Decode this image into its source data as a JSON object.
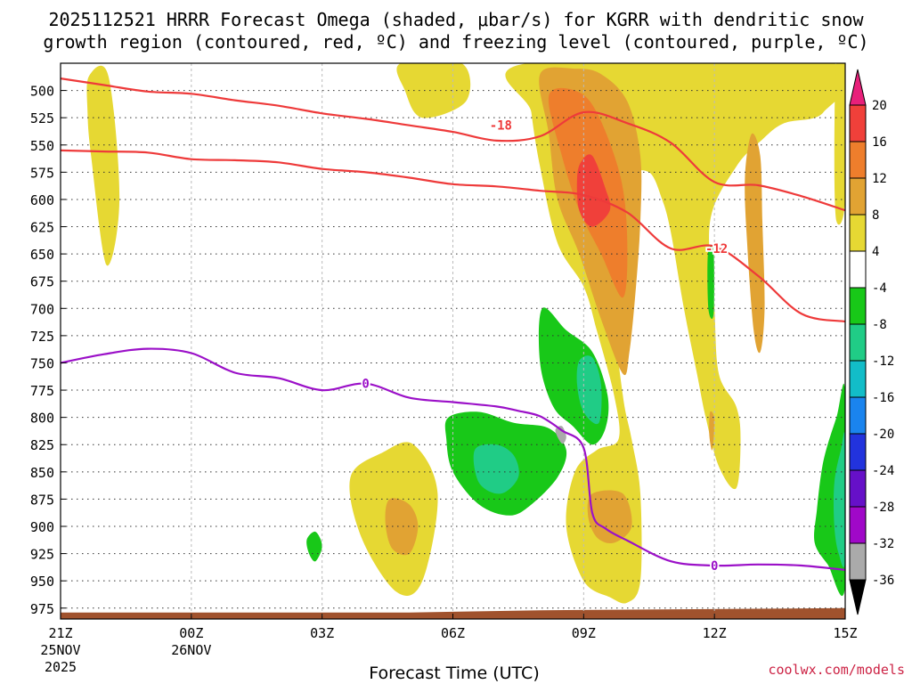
{
  "chart_data": {
    "type": "contour",
    "title_line1": "2025112521 HRRR Forecast Omega (shaded, μbar/s) for KGRR with dendritic snow",
    "title_line2": "growth region (contoured, red, ºC) and freezing level (contoured, purple, ºC)",
    "xlabel": "Forecast Time (UTC)",
    "credit": "coolwx.com/models",
    "x_range_hours": [
      0,
      18
    ],
    "y_range_hpa": [
      475,
      985
    ],
    "y_ticks": [
      500,
      525,
      550,
      575,
      600,
      625,
      650,
      675,
      700,
      725,
      750,
      775,
      800,
      825,
      850,
      875,
      900,
      925,
      950,
      975
    ],
    "x_ticks": [
      {
        "hour": 0,
        "label": "21Z",
        "sub1": "25NOV",
        "sub2": "2025"
      },
      {
        "hour": 3,
        "label": "00Z",
        "sub1": "26NOV",
        "sub2": ""
      },
      {
        "hour": 6,
        "label": "03Z",
        "sub1": "",
        "sub2": ""
      },
      {
        "hour": 9,
        "label": "06Z",
        "sub1": "",
        "sub2": ""
      },
      {
        "hour": 12,
        "label": "09Z",
        "sub1": "",
        "sub2": ""
      },
      {
        "hour": 15,
        "label": "12Z",
        "sub1": "",
        "sub2": ""
      },
      {
        "hour": 18,
        "label": "15Z",
        "sub1": "",
        "sub2": ""
      }
    ],
    "colorbar": {
      "labels": [
        "20",
        "16",
        "12",
        "8",
        "4",
        "-4",
        "-8",
        "-12",
        "-16",
        "-20",
        "-24",
        "-28",
        "-32",
        "-36"
      ],
      "bins": [
        {
          "lo": 20,
          "hi": 24,
          "color": "#e8207a"
        },
        {
          "lo": 16,
          "hi": 20,
          "color": "#f0403a"
        },
        {
          "lo": 12,
          "hi": 16,
          "color": "#ee7e2c"
        },
        {
          "lo": 8,
          "hi": 12,
          "color": "#e1a333"
        },
        {
          "lo": 4,
          "hi": 8,
          "color": "#e6d833"
        },
        {
          "lo": -4,
          "hi": 4,
          "color": "#ffffff"
        },
        {
          "lo": -8,
          "hi": -4,
          "color": "#18c818"
        },
        {
          "lo": -12,
          "hi": -8,
          "color": "#20cc86"
        },
        {
          "lo": -16,
          "hi": -12,
          "color": "#12bdc8"
        },
        {
          "lo": -20,
          "hi": -16,
          "color": "#1a84ee"
        },
        {
          "lo": -24,
          "hi": -20,
          "color": "#2233dd"
        },
        {
          "lo": -28,
          "hi": -24,
          "color": "#6610c8"
        },
        {
          "lo": -32,
          "hi": -28,
          "color": "#a008c8"
        },
        {
          "lo": -36,
          "hi": -32,
          "color": "#aaaaaa"
        },
        {
          "lo": -40,
          "hi": -36,
          "color": "#000000"
        }
      ]
    },
    "omega_regions": [
      {
        "name": "omega-ge4-west",
        "value_bin": "4-8",
        "color": "#e6d833",
        "points": [
          [
            0.65,
            487
          ],
          [
            1.1,
            487
          ],
          [
            1.35,
            600
          ],
          [
            1.05,
            660
          ],
          [
            0.7,
            560
          ],
          [
            0.62,
            520
          ]
        ]
      },
      {
        "name": "omega-ge4-upper-left",
        "value_bin": "4-8",
        "color": "#e6d833",
        "points": [
          [
            7.8,
            475
          ],
          [
            9.2,
            475
          ],
          [
            9.3,
            510
          ],
          [
            8.3,
            525
          ],
          [
            7.9,
            500
          ]
        ]
      },
      {
        "name": "omega-ge4-main",
        "value_bin": "4-8",
        "color": "#e6d833",
        "points": [
          [
            10.7,
            475
          ],
          [
            17.7,
            475
          ],
          [
            17.5,
            520
          ],
          [
            16.6,
            530
          ],
          [
            16.1,
            545
          ],
          [
            15.5,
            570
          ],
          [
            14.9,
            620
          ],
          [
            15.0,
            700
          ],
          [
            15.1,
            760
          ],
          [
            15.5,
            790
          ],
          [
            15.6,
            820
          ],
          [
            15.5,
            865
          ],
          [
            15.1,
            845
          ],
          [
            14.8,
            800
          ],
          [
            14.6,
            760
          ],
          [
            14.3,
            700
          ],
          [
            14.0,
            630
          ],
          [
            13.8,
            600
          ],
          [
            13.5,
            575
          ],
          [
            13.0,
            580
          ],
          [
            12.8,
            620
          ],
          [
            12.7,
            700
          ],
          [
            12.9,
            780
          ],
          [
            13.1,
            820
          ],
          [
            13.3,
            870
          ],
          [
            13.3,
            950
          ],
          [
            13.0,
            970
          ],
          [
            12.6,
            965
          ],
          [
            12.0,
            950
          ],
          [
            11.6,
            900
          ],
          [
            11.8,
            850
          ],
          [
            12.3,
            830
          ],
          [
            12.8,
            820
          ],
          [
            12.7,
            780
          ],
          [
            12.3,
            720
          ],
          [
            12.0,
            680
          ],
          [
            11.4,
            640
          ],
          [
            11.0,
            570
          ],
          [
            10.8,
            520
          ]
        ]
      },
      {
        "name": "omega-ge4-east-edge",
        "value_bin": "4-8",
        "color": "#e6d833",
        "points": [
          [
            17.8,
            475
          ],
          [
            18,
            475
          ],
          [
            18,
            600
          ],
          [
            17.8,
            620
          ],
          [
            17.75,
            560
          ]
        ]
      },
      {
        "name": "omega-ge4-low-left",
        "value_bin": "4-8",
        "color": "#e6d833",
        "points": [
          [
            6.65,
            855
          ],
          [
            7.4,
            832
          ],
          [
            8.1,
            825
          ],
          [
            8.65,
            870
          ],
          [
            8.3,
            950
          ],
          [
            7.7,
            960
          ],
          [
            6.9,
            910
          ]
        ]
      },
      {
        "name": "omega-ge8-main",
        "value_bin": "8-12",
        "color": "#e1a333",
        "points": [
          [
            11.0,
            485
          ],
          [
            11.8,
            480
          ],
          [
            12.4,
            485
          ],
          [
            13.0,
            510
          ],
          [
            13.3,
            560
          ],
          [
            13.3,
            620
          ],
          [
            13.2,
            680
          ],
          [
            13.05,
            740
          ],
          [
            12.9,
            760
          ],
          [
            12.4,
            710
          ],
          [
            11.9,
            650
          ],
          [
            11.4,
            600
          ],
          [
            11.2,
            540
          ]
        ]
      },
      {
        "name": "omega-ge8-east-band",
        "value_bin": "8-12",
        "color": "#e1a333",
        "points": [
          [
            15.85,
            540
          ],
          [
            16.05,
            560
          ],
          [
            16.1,
            620
          ],
          [
            16.15,
            700
          ],
          [
            16.05,
            740
          ],
          [
            15.9,
            720
          ],
          [
            15.75,
            640
          ],
          [
            15.7,
            580
          ]
        ]
      },
      {
        "name": "omega-ge8-low-left",
        "value_bin": "8-12",
        "color": "#e1a333",
        "points": [
          [
            7.55,
            875
          ],
          [
            8.0,
            880
          ],
          [
            8.2,
            900
          ],
          [
            8.0,
            925
          ],
          [
            7.6,
            920
          ],
          [
            7.45,
            895
          ]
        ]
      },
      {
        "name": "omega-ge8-low-mid",
        "value_bin": "8-12",
        "color": "#e1a333",
        "points": [
          [
            12.2,
            870
          ],
          [
            12.9,
            870
          ],
          [
            13.1,
            900
          ],
          [
            12.7,
            915
          ],
          [
            12.3,
            910
          ],
          [
            12.1,
            890
          ]
        ]
      },
      {
        "name": "omega-ge8-blip-12z",
        "value_bin": "8-12",
        "color": "#e1a333",
        "points": [
          [
            14.9,
            795
          ],
          [
            15.0,
            802
          ],
          [
            14.95,
            830
          ],
          [
            14.88,
            815
          ]
        ]
      },
      {
        "name": "omega-ge12-main",
        "value_bin": "12-16",
        "color": "#ee7e2c",
        "points": [
          [
            11.2,
            505
          ],
          [
            11.8,
            500
          ],
          [
            12.3,
            520
          ],
          [
            12.85,
            580
          ],
          [
            13.0,
            640
          ],
          [
            12.9,
            690
          ],
          [
            12.4,
            650
          ],
          [
            11.9,
            610
          ],
          [
            11.5,
            560
          ]
        ]
      },
      {
        "name": "omega-ge16-core",
        "value_bin": "16-20",
        "color": "#f0403a",
        "points": [
          [
            11.95,
            565
          ],
          [
            12.2,
            560
          ],
          [
            12.5,
            590
          ],
          [
            12.6,
            610
          ],
          [
            12.2,
            625
          ],
          [
            11.9,
            610
          ],
          [
            11.85,
            580
          ]
        ]
      },
      {
        "name": "omega-le-4-ascent-band",
        "value_bin": "-8--4",
        "color": "#18c818",
        "points": [
          [
            11.05,
            700
          ],
          [
            11.6,
            720
          ],
          [
            12.2,
            740
          ],
          [
            12.55,
            780
          ],
          [
            12.5,
            810
          ],
          [
            12.2,
            825
          ],
          [
            11.75,
            808
          ],
          [
            11.3,
            790
          ],
          [
            11.0,
            750
          ]
        ]
      },
      {
        "name": "omega-le-4-lower-mid",
        "value_bin": "-8--4",
        "color": "#18c818",
        "points": [
          [
            8.9,
            800
          ],
          [
            9.6,
            795
          ],
          [
            10.4,
            805
          ],
          [
            11.2,
            810
          ],
          [
            11.6,
            830
          ],
          [
            11.4,
            855
          ],
          [
            10.8,
            880
          ],
          [
            10.3,
            890
          ],
          [
            9.6,
            880
          ],
          [
            9.0,
            850
          ],
          [
            8.85,
            820
          ]
        ]
      },
      {
        "name": "omega-le-4-east",
        "value_bin": "-8--4",
        "color": "#18c818",
        "points": [
          [
            17.35,
            885
          ],
          [
            17.5,
            840
          ],
          [
            17.8,
            800
          ],
          [
            18,
            778
          ],
          [
            18,
            955
          ],
          [
            17.6,
            935
          ],
          [
            17.3,
            915
          ]
        ]
      },
      {
        "name": "omega-le-4-thin-12z",
        "value_bin": "-8--4",
        "color": "#18c818",
        "points": [
          [
            14.85,
            650
          ],
          [
            14.98,
            648
          ],
          [
            14.98,
            705
          ],
          [
            14.86,
            700
          ]
        ]
      },
      {
        "name": "omega-le-4-small",
        "value_bin": "-8--4",
        "color": "#18c818",
        "points": [
          [
            5.65,
            912
          ],
          [
            5.85,
            905
          ],
          [
            6.0,
            918
          ],
          [
            5.85,
            932
          ],
          [
            5.7,
            925
          ]
        ]
      },
      {
        "name": "omega-le-8-ascent-band",
        "value_bin": "-12--8",
        "color": "#20cc86",
        "points": [
          [
            11.9,
            748
          ],
          [
            12.2,
            745
          ],
          [
            12.4,
            770
          ],
          [
            12.35,
            805
          ],
          [
            12.0,
            795
          ],
          [
            11.85,
            770
          ]
        ]
      },
      {
        "name": "omega-le-8-lower-mid",
        "value_bin": "-12--8",
        "color": "#20cc86",
        "points": [
          [
            9.5,
            830
          ],
          [
            10.0,
            825
          ],
          [
            10.4,
            835
          ],
          [
            10.5,
            855
          ],
          [
            10.1,
            870
          ],
          [
            9.6,
            860
          ]
        ]
      },
      {
        "name": "omega-le-8-east",
        "value_bin": "-12--8",
        "color": "#20cc86",
        "points": [
          [
            17.75,
            860
          ],
          [
            17.9,
            830
          ],
          [
            18,
            820
          ],
          [
            18,
            930
          ],
          [
            17.85,
            925
          ],
          [
            17.75,
            900
          ]
        ]
      },
      {
        "name": "omega-le-32-speck",
        "value_bin": "-36--32",
        "color": "#aaaaaa",
        "points": [
          [
            11.35,
            812
          ],
          [
            11.5,
            808
          ],
          [
            11.6,
            818
          ],
          [
            11.5,
            824
          ]
        ]
      }
    ],
    "series": [
      {
        "name": "-18 C isotherm (upper)",
        "color": "#ee3a3a",
        "x": [
          0,
          1,
          2,
          3,
          4,
          5,
          6,
          7,
          8,
          9,
          10,
          11,
          12,
          13,
          14,
          15,
          16,
          17,
          18
        ],
        "y": [
          489,
          495,
          501,
          503,
          509,
          514,
          521,
          526,
          532,
          538,
          546,
          542,
          520,
          530,
          548,
          584,
          587,
          597,
          610
        ]
      },
      {
        "name": "-12 C isotherm (lower)",
        "color": "#ee3a3a",
        "x": [
          0,
          1,
          2,
          3,
          4,
          5,
          6,
          7,
          8,
          9,
          10,
          11,
          12,
          13,
          14,
          15,
          16,
          17,
          18
        ],
        "y": [
          555,
          556,
          557,
          563,
          564,
          566,
          572,
          575,
          580,
          586,
          588,
          592,
          596,
          612,
          645,
          643,
          670,
          705,
          712
        ]
      },
      {
        "name": "0 C freezing level",
        "color": "#9b10c8",
        "x": [
          0,
          1,
          2,
          3,
          4,
          5,
          6,
          7,
          8,
          9,
          10,
          10.5,
          11,
          11.5,
          12,
          12.2,
          12.5,
          13,
          14,
          15,
          16,
          17,
          18
        ],
        "y": [
          750,
          742,
          737,
          741,
          759,
          764,
          775,
          769,
          782,
          786,
          790,
          794,
          799,
          812,
          828,
          888,
          902,
          913,
          932,
          936,
          935,
          936,
          940
        ]
      }
    ],
    "contour_labels": [
      {
        "text": "-18",
        "x": 10.1,
        "y": 532,
        "color": "#ee3a3a"
      },
      {
        "text": "-12",
        "x": 15.05,
        "y": 645,
        "color": "#ee3a3a"
      },
      {
        "text": "0",
        "x": 7.0,
        "y": 769,
        "color": "#9b10c8"
      },
      {
        "text": "0",
        "x": 15.0,
        "y": 936,
        "color": "#9b10c8"
      }
    ],
    "terrain": {
      "color": "#a0522d",
      "top_hpa": [
        [
          0,
          979
        ],
        [
          8,
          979
        ],
        [
          11,
          977
        ],
        [
          18,
          975
        ]
      ]
    }
  }
}
